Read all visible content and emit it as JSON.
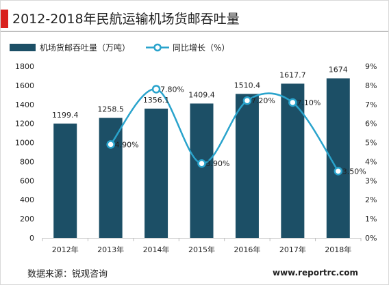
{
  "header": {
    "title": "2012-2018年民航运输机场货邮吞吐量"
  },
  "footer": {
    "source": "数据来源：锐观咨询",
    "website": "www.reportrc.com"
  },
  "colors": {
    "bar": "#1c4f66",
    "line": "#29a3cc",
    "title_accent": "#d9211e"
  },
  "chart_data": {
    "type": "bar",
    "categories": [
      "2012年",
      "2013年",
      "2014年",
      "2015年",
      "2016年",
      "2017年",
      "2018年"
    ],
    "series": [
      {
        "name": "机场货邮吞吐量（万吨）",
        "type": "bar",
        "axis": "left",
        "values": [
          1199.4,
          1258.5,
          1356.1,
          1409.4,
          1510.4,
          1617.7,
          1674
        ],
        "labels": [
          "1199.4",
          "1258.5",
          "1356.1",
          "1409.4",
          "1510.4",
          "1617.7",
          "1674"
        ]
      },
      {
        "name": "同比增长（%）",
        "type": "line",
        "axis": "right",
        "values": [
          null,
          4.9,
          7.8,
          3.9,
          7.2,
          7.1,
          3.5
        ],
        "labels": [
          "",
          "4.90%",
          "7.80%",
          "3.90%",
          "7.20%",
          "7.10%",
          "3.50%"
        ]
      }
    ],
    "y_left": {
      "min": 0,
      "max": 1800,
      "ticks": [
        "0",
        "200",
        "400",
        "600",
        "800",
        "1000",
        "1200",
        "1400",
        "1600",
        "1800"
      ]
    },
    "y_right": {
      "min": 0,
      "max": 9,
      "ticks": [
        "0%",
        "1%",
        "2%",
        "3%",
        "4%",
        "5%",
        "6%",
        "7%",
        "8%",
        "9%"
      ]
    },
    "grid": false,
    "legend": "top-left"
  }
}
